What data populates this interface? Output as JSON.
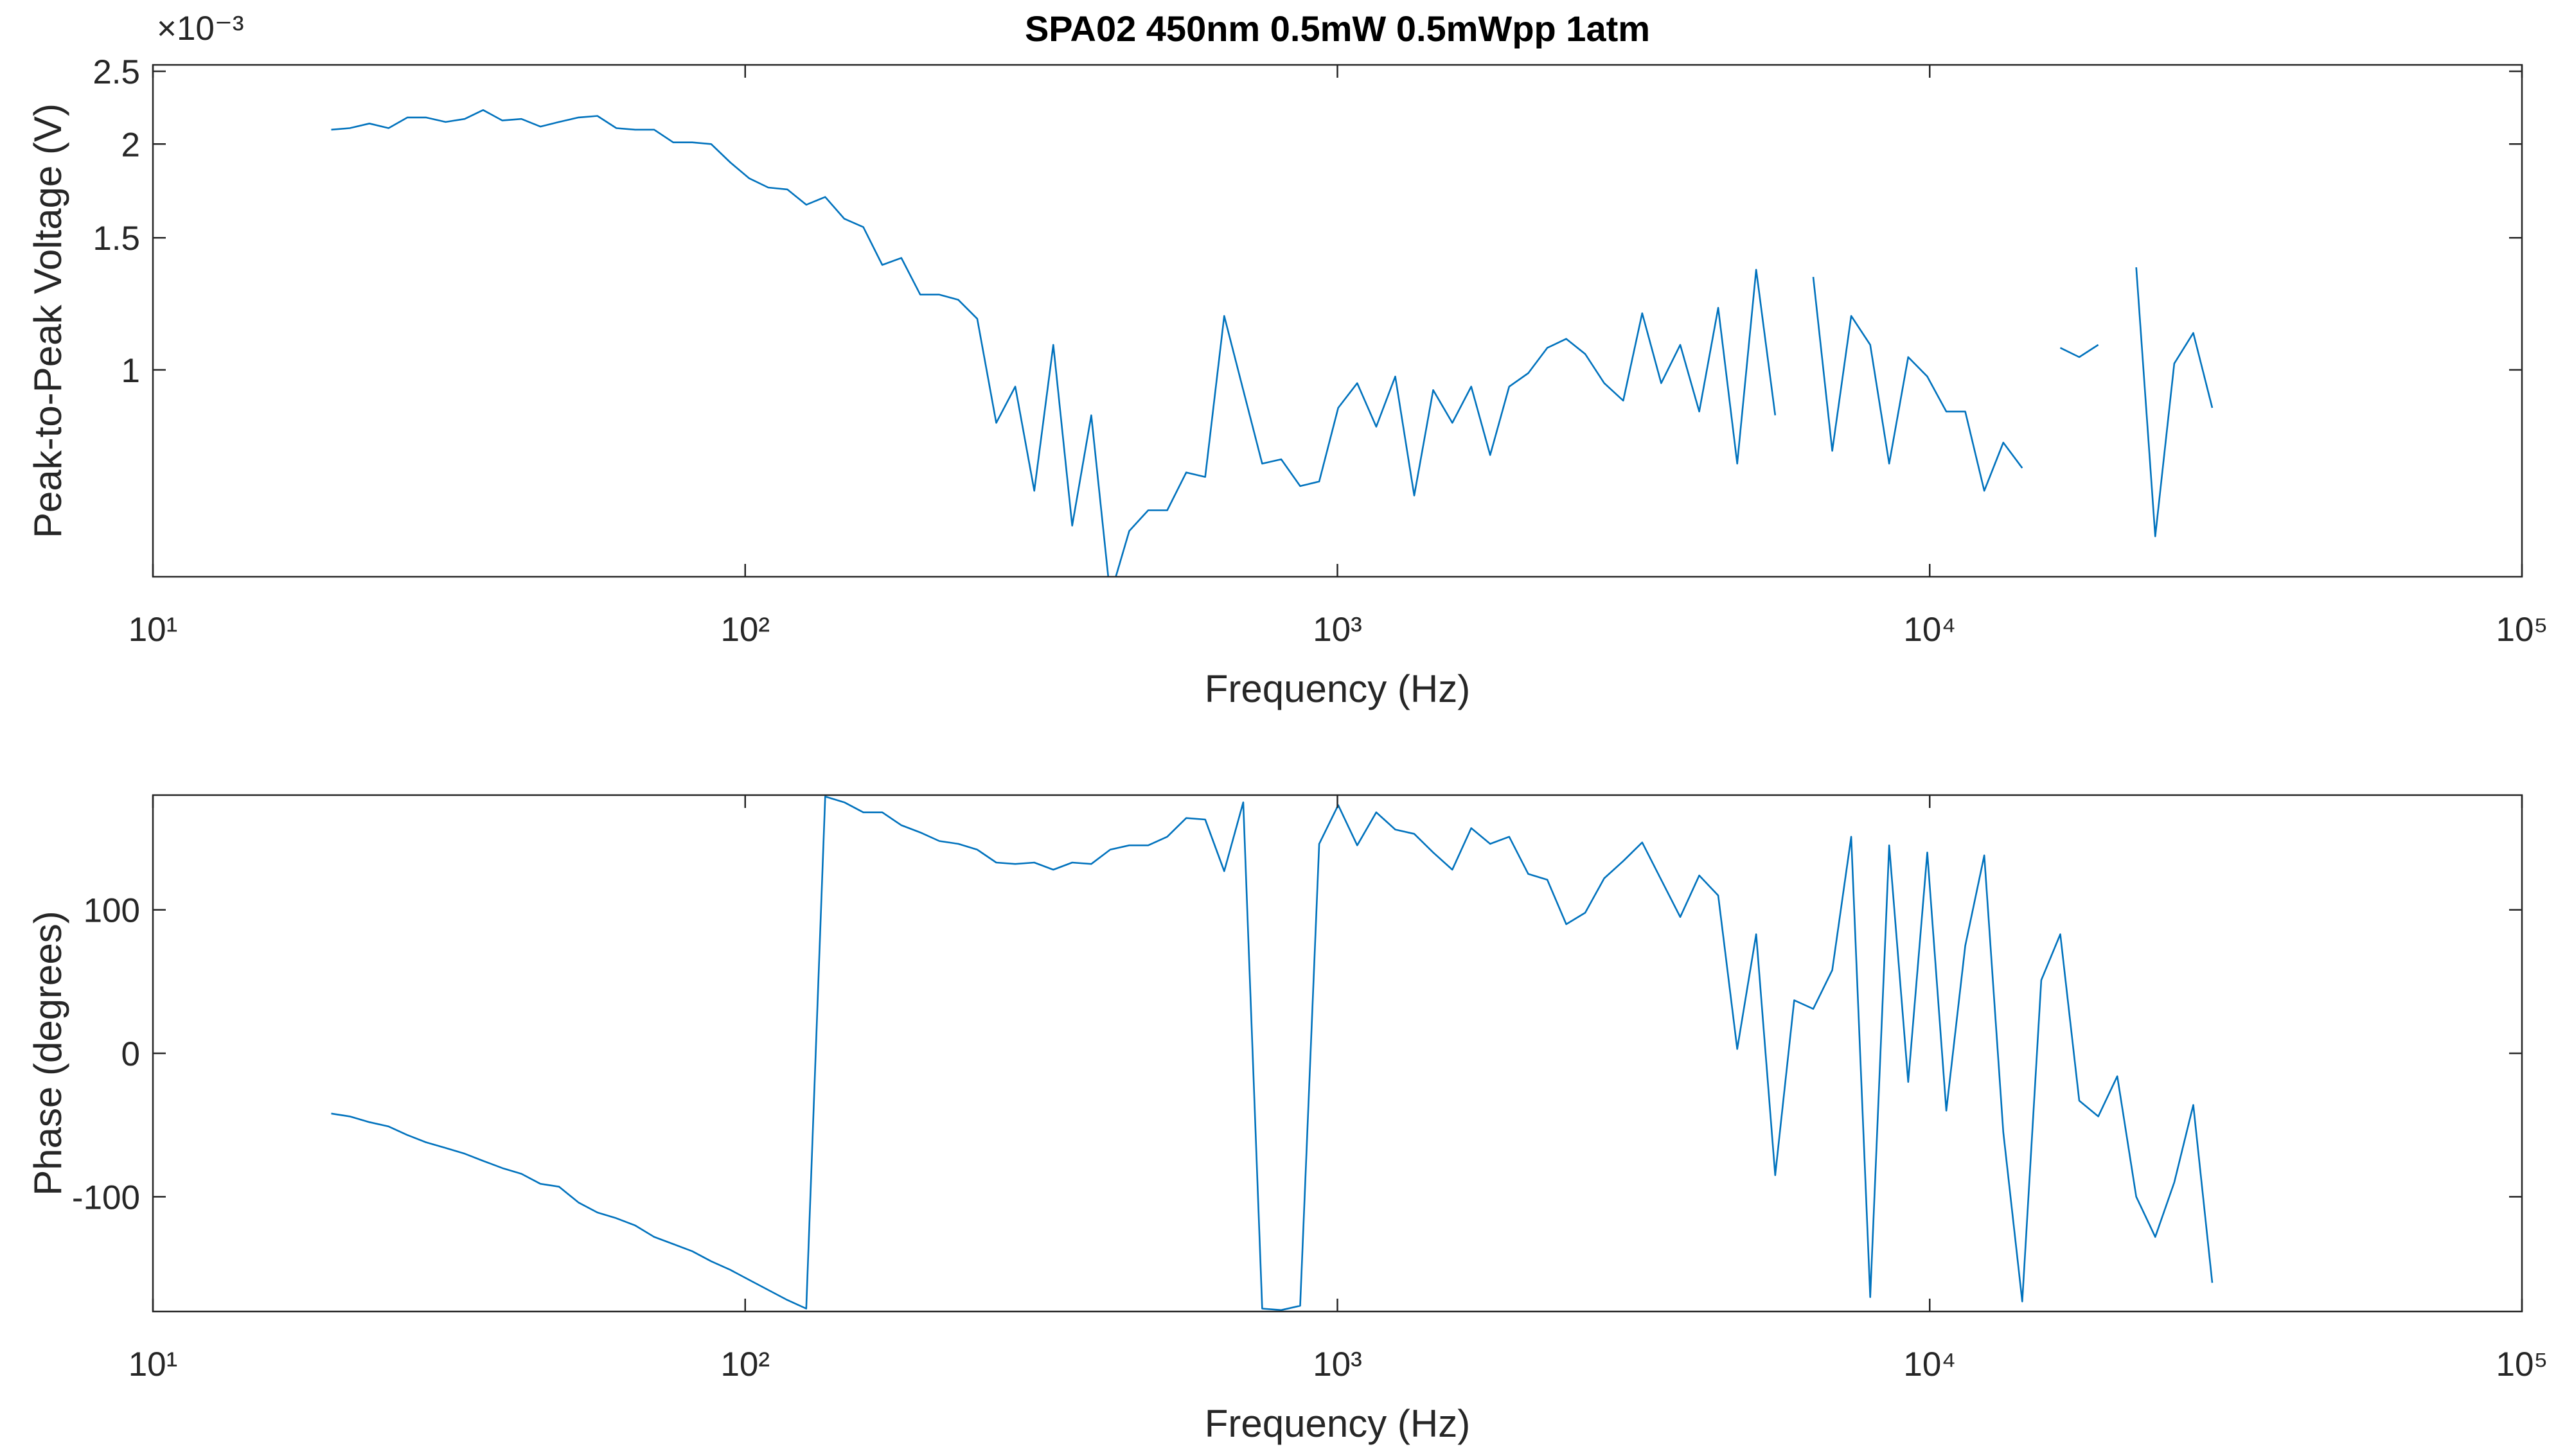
{
  "chart_data": [
    {
      "type": "line",
      "title": "SPA02 450nm 0.5mW 0.5mWpp 1atm",
      "y_exponent": "×10⁻³",
      "xlabel": "Frequency (Hz)",
      "ylabel": "Peak-to-Peak Voltage (V)",
      "xscale": "log",
      "yscale": "log",
      "grid": false,
      "xlim": [
        10,
        100000
      ],
      "xticks": [
        {
          "value": 10,
          "label": "10¹"
        },
        {
          "value": 100,
          "label": "10²"
        },
        {
          "value": 1000,
          "label": "10³"
        },
        {
          "value": 10000,
          "label": "10⁴"
        },
        {
          "value": 100000,
          "label": "10⁵"
        }
      ],
      "ylim": [
        0.53,
        2.55
      ],
      "yticks": [
        1,
        1.5,
        2,
        2.5
      ],
      "x": [
        20.0,
        21.5,
        23.2,
        25.0,
        26.9,
        28.9,
        31.2,
        33.6,
        36.1,
        38.9,
        41.9,
        45.1,
        48.5,
        52.3,
        56.3,
        60.6,
        65.2,
        70.2,
        75.6,
        81.4,
        87.6,
        94.4,
        101.6,
        109.4,
        117.8,
        126.8,
        136.5,
        147.0,
        158.3,
        170.4,
        183.5,
        197.5,
        212.7,
        229.0,
        246.5,
        265.4,
        285.8,
        307.7,
        331.3,
        356.6,
        384.0,
        413.4,
        445.1,
        479.2,
        515.9,
        555.5,
        598.1,
        643.9,
        693.3,
        746.4,
        803.6,
        865.2,
        931.5,
        1003,
        1080,
        1163,
        1252,
        1348,
        1451,
        1563,
        1682,
        1811,
        1950,
        2100,
        2261,
        2434,
        2620,
        2821,
        3038,
        3270,
        3521,
        3791,
        4082,
        4395,
        4732,
        5094,
        5485,
        5905,
        6358,
        6846,
        7370,
        7935,
        8543,
        9198,
        9906,
        10666,
        11483,
        12364,
        13312,
        14332,
        15431,
        16614,
        17887,
        19258,
        20736,
        22325,
        24036,
        25880,
        27865,
        30000
      ],
      "series": [
        {
          "color": "#0072bd",
          "values": [
            2.09,
            2.1,
            2.13,
            2.1,
            2.17,
            2.17,
            2.14,
            2.16,
            2.22,
            2.15,
            2.16,
            2.11,
            2.14,
            2.17,
            2.18,
            2.1,
            2.09,
            2.09,
            2.01,
            2.01,
            2.0,
            1.89,
            1.8,
            1.75,
            1.74,
            1.66,
            1.7,
            1.59,
            1.55,
            1.38,
            1.41,
            1.26,
            1.26,
            1.24,
            1.17,
            0.85,
            0.95,
            0.69,
            1.08,
            0.62,
            0.87,
            0.5,
            0.61,
            0.65,
            0.65,
            0.73,
            0.72,
            1.18,
            0.94,
            0.75,
            0.76,
            0.7,
            0.71,
            0.89,
            0.96,
            0.84,
            0.98,
            0.68,
            0.94,
            0.85,
            0.95,
            0.77,
            0.95,
            0.99,
            1.07,
            1.1,
            1.05,
            0.96,
            0.91,
            1.19,
            0.96,
            1.08,
            0.88,
            1.21,
            0.75,
            1.36,
            0.87,
            null,
            1.33,
            0.78,
            1.18,
            1.08,
            0.75,
            1.04,
            0.98,
            0.88,
            0.88,
            0.69,
            0.8,
            0.74,
            null,
            1.07,
            1.04,
            1.08,
            null,
            1.37,
            0.6,
            1.02,
            1.12,
            0.89
          ]
        }
      ]
    },
    {
      "type": "line",
      "xlabel": "Frequency (Hz)",
      "ylabel": "Phase (degrees)",
      "xscale": "log",
      "yscale": "linear",
      "grid": false,
      "xlim": [
        10,
        100000
      ],
      "xticks": [
        {
          "value": 10,
          "label": "10¹"
        },
        {
          "value": 100,
          "label": "10²"
        },
        {
          "value": 1000,
          "label": "10³"
        },
        {
          "value": 10000,
          "label": "10⁴"
        },
        {
          "value": 100000,
          "label": "10⁵"
        }
      ],
      "ylim": [
        -180,
        180
      ],
      "yticks": [
        -100,
        0,
        100
      ],
      "x": [
        20.0,
        21.5,
        23.2,
        25.0,
        26.9,
        28.9,
        31.2,
        33.6,
        36.1,
        38.9,
        41.9,
        45.1,
        48.5,
        52.3,
        56.3,
        60.6,
        65.2,
        70.2,
        75.6,
        81.4,
        87.6,
        94.4,
        101.6,
        109.4,
        117.8,
        126.8,
        136.5,
        147.0,
        158.3,
        170.4,
        183.5,
        197.5,
        212.7,
        229.0,
        246.5,
        265.4,
        285.8,
        307.7,
        331.3,
        356.6,
        384.0,
        413.4,
        445.1,
        479.2,
        515.9,
        555.5,
        598.1,
        643.9,
        693.3,
        746.4,
        803.6,
        865.2,
        931.5,
        1003,
        1080,
        1163,
        1252,
        1348,
        1451,
        1563,
        1682,
        1811,
        1950,
        2100,
        2261,
        2434,
        2620,
        2821,
        3038,
        3270,
        3521,
        3791,
        4082,
        4395,
        4732,
        5094,
        5485,
        5905,
        6358,
        6846,
        7370,
        7935,
        8543,
        9198,
        9906,
        10666,
        11483,
        12364,
        13312,
        14332,
        15431,
        16614,
        17887,
        19258,
        20736,
        22325,
        24036,
        25880,
        27865,
        30000
      ],
      "series": [
        {
          "color": "#0072bd",
          "values": [
            -42,
            -44,
            -48,
            -51,
            -57,
            -62,
            -66,
            -70,
            -75,
            -80,
            -84,
            -91,
            -93,
            -104,
            -111,
            -115,
            -120,
            -128,
            -133,
            -138,
            -145,
            -151,
            -158,
            -165,
            -172,
            -178,
            179,
            175,
            168,
            168,
            159,
            154,
            148,
            146,
            142,
            133,
            132,
            133,
            128,
            133,
            132,
            142,
            145,
            145,
            151,
            164,
            163,
            127,
            175,
            -178,
            -179,
            -176,
            146,
            173,
            145,
            168,
            156,
            153,
            140,
            128,
            157,
            146,
            151,
            125,
            121,
            90,
            98,
            122,
            134,
            147,
            121,
            95,
            124,
            110,
            3,
            83,
            -85,
            37,
            31,
            58,
            151,
            -170,
            145,
            -20,
            140,
            -40,
            75,
            138,
            -55,
            -173,
            51,
            83,
            -33,
            -44,
            -16,
            -100,
            -128,
            -90,
            -36,
            -160
          ]
        }
      ]
    }
  ]
}
